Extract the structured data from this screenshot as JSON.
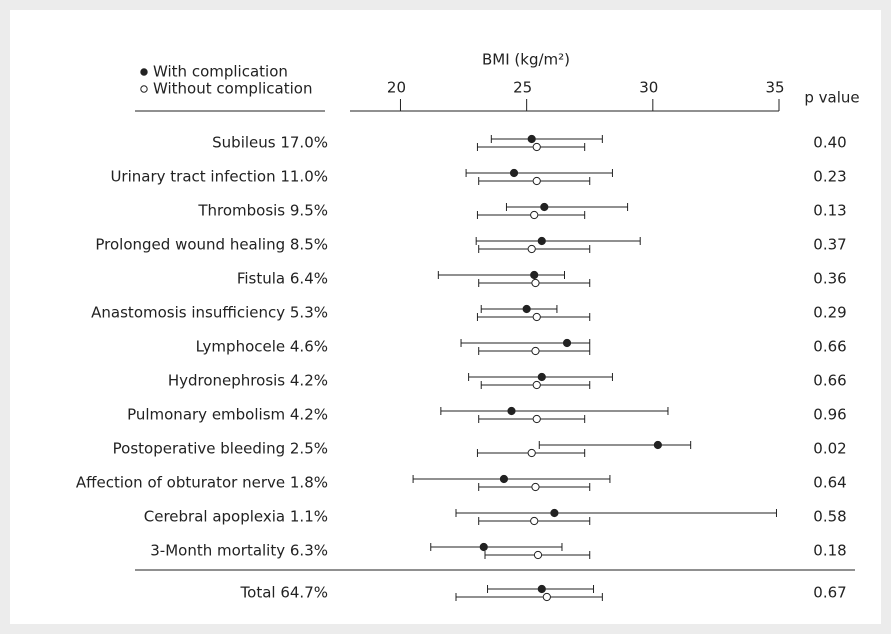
{
  "chart_data": {
    "type": "forest",
    "x_label": "BMI (kg/m²)",
    "p_header": "p value",
    "xlim": [
      18,
      35
    ],
    "xticks": [
      20,
      25,
      30,
      35
    ],
    "categories": [
      "Subileus 17.0%",
      "Urinary tract infection 11.0%",
      "Thrombosis 9.5%",
      "Prolonged wound healing 8.5%",
      "Fistula 6.4%",
      "Anastomosis insufficiency 5.3%",
      "Lymphocele 4.6%",
      "Hydronephrosis 4.2%",
      "Pulmonary embolism 4.2%",
      "Postoperative bleeding 2.5%",
      "Affection of obturator nerve 1.8%",
      "Cerebral apoplexia 1.1%",
      "3-Month mortality 6.3%",
      "Total 64.7%"
    ],
    "p_values": [
      "0.40",
      "0.23",
      "0.13",
      "0.37",
      "0.36",
      "0.29",
      "0.66",
      "0.66",
      "0.96",
      "0.02",
      "0.64",
      "0.58",
      "0.18",
      "0.67"
    ],
    "series": [
      {
        "name": "With complication",
        "color": "#222222",
        "values": [
          25.2,
          24.5,
          25.7,
          25.6,
          25.3,
          25.0,
          26.6,
          25.6,
          24.4,
          30.2,
          24.1,
          26.1,
          23.3,
          25.6
        ],
        "low": [
          23.6,
          22.6,
          24.2,
          23.0,
          21.5,
          23.2,
          22.4,
          22.7,
          21.6,
          25.5,
          20.5,
          22.2,
          21.2,
          23.45
        ],
        "high": [
          28.0,
          28.4,
          29.0,
          29.5,
          26.5,
          26.2,
          27.5,
          28.4,
          30.6,
          31.5,
          28.3,
          34.9,
          26.4,
          27.65
        ]
      },
      {
        "name": "Without complication",
        "color": "#ffffff",
        "values": [
          25.4,
          25.4,
          25.3,
          25.2,
          25.35,
          25.4,
          25.35,
          25.4,
          25.4,
          25.2,
          25.35,
          25.3,
          25.45,
          25.8
        ],
        "low": [
          23.05,
          23.1,
          23.05,
          23.1,
          23.1,
          23.05,
          23.1,
          23.2,
          23.1,
          23.05,
          23.1,
          23.1,
          23.35,
          22.2
        ],
        "high": [
          27.3,
          27.5,
          27.3,
          27.5,
          27.5,
          27.5,
          27.5,
          27.5,
          27.3,
          27.3,
          27.5,
          27.5,
          27.5,
          28.0
        ]
      }
    ]
  }
}
